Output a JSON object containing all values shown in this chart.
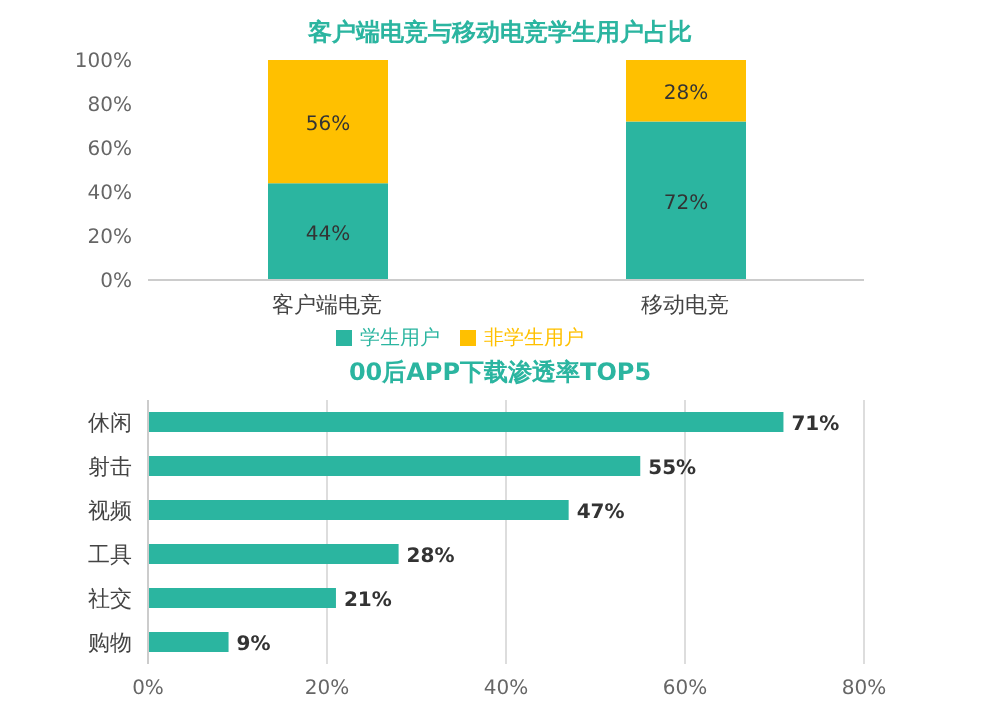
{
  "chart_data": [
    {
      "type": "bar",
      "title": "客户端电竞与移动电竞学生用户占比",
      "categories": [
        "客户端电竞",
        "移动电竞"
      ],
      "stacked": true,
      "series": [
        {
          "name": "学生用户",
          "color": "#2bb5a0",
          "values": [
            44,
            72
          ],
          "value_labels": [
            "44%",
            "72%"
          ]
        },
        {
          "name": "非学生用户",
          "color": "#ffc000",
          "values": [
            56,
            28
          ],
          "value_labels": [
            "56%",
            "28%"
          ]
        }
      ],
      "ylim": [
        0,
        100
      ],
      "yticks": [
        {
          "value": 0,
          "label": "0%"
        },
        {
          "value": 20,
          "label": "20%"
        },
        {
          "value": 40,
          "label": "40%"
        },
        {
          "value": 60,
          "label": "60%"
        },
        {
          "value": 80,
          "label": "80%"
        },
        {
          "value": 100,
          "label": "100%"
        }
      ],
      "legend": "bottom"
    },
    {
      "type": "bar",
      "title": "00后APP下载渗透率TOP5",
      "orientation": "horizontal",
      "categories": [
        "休闲",
        "射击",
        "视频",
        "工具",
        "社交",
        "购物"
      ],
      "series": [
        {
          "color": "#2bb5a0",
          "values": [
            71,
            55,
            47,
            28,
            21,
            9
          ],
          "value_labels": [
            "71%",
            "55%",
            "47%",
            "28%",
            "21%",
            "9%"
          ]
        }
      ],
      "xlim": [
        0,
        80
      ],
      "xticks": [
        {
          "value": 0,
          "label": "0%"
        },
        {
          "value": 20,
          "label": "20%"
        },
        {
          "value": 40,
          "label": "40%"
        },
        {
          "value": 60,
          "label": "60%"
        },
        {
          "value": 80,
          "label": "80%"
        }
      ],
      "grid": "x"
    }
  ]
}
